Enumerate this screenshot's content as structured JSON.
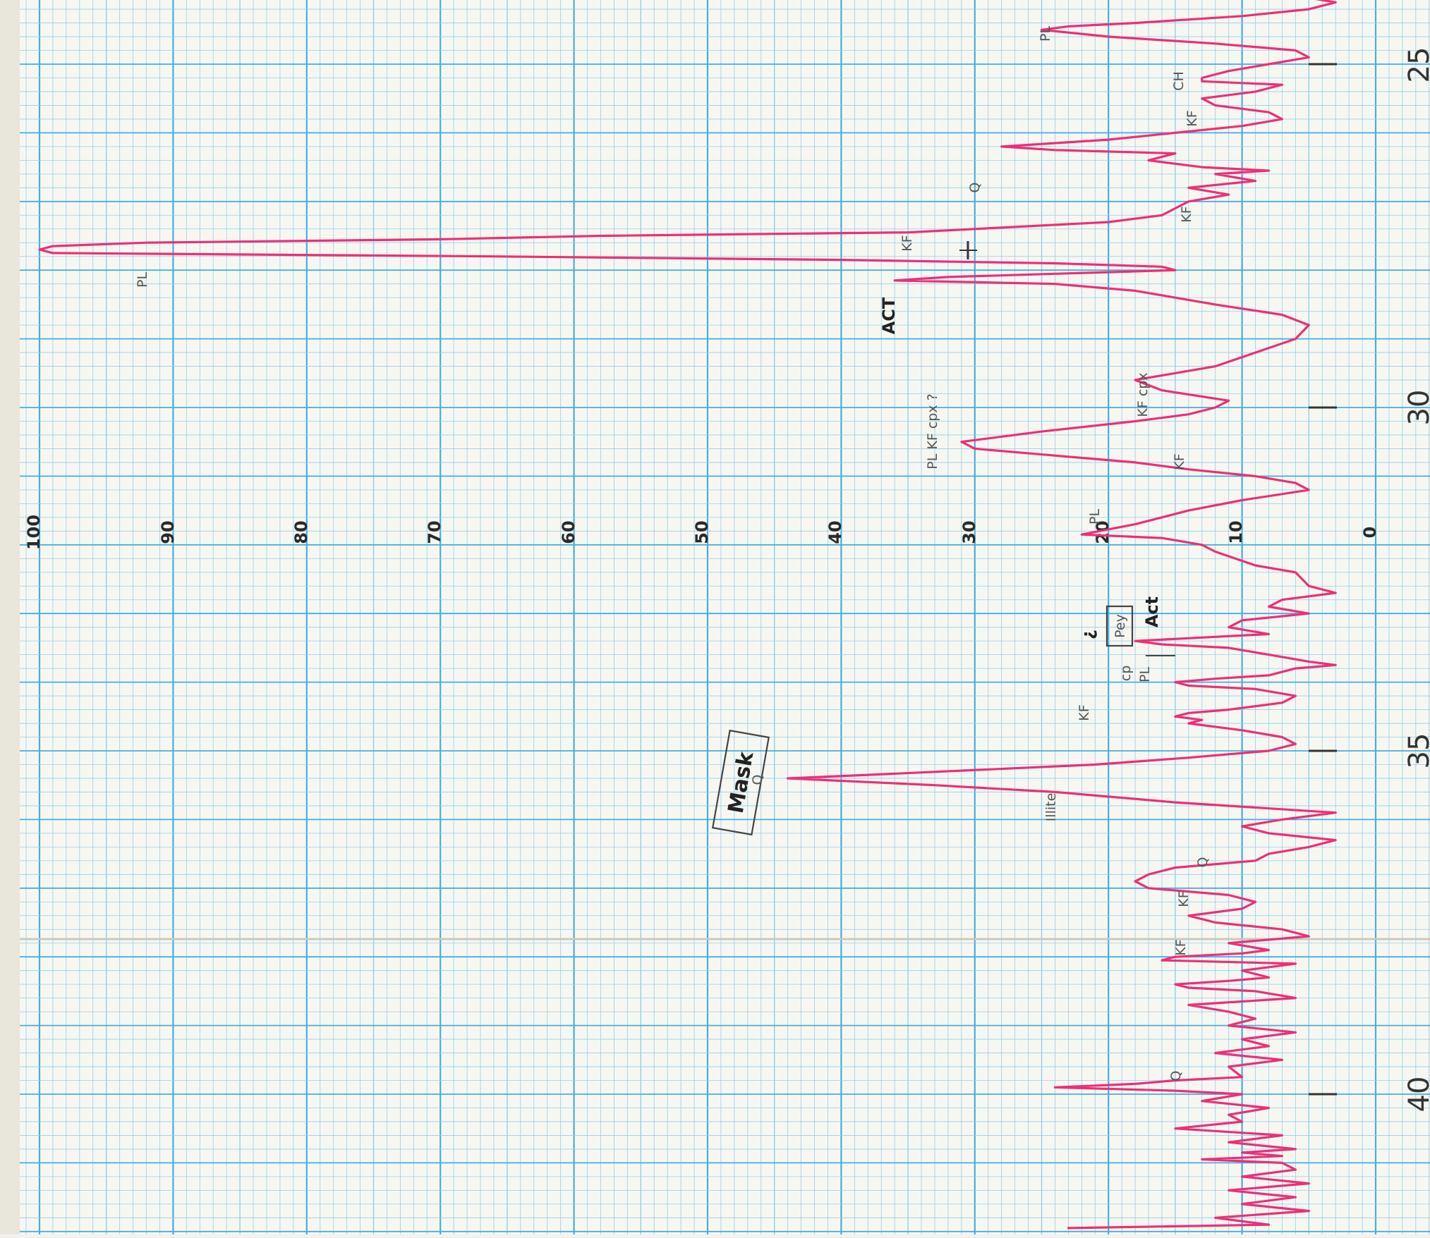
{
  "colors": {
    "paper": "#f4f2ea",
    "grid_minor": "#8fd0ee",
    "grid_major": "#45aee2",
    "trace": "#ee2e76",
    "pencil": "#555555"
  },
  "chart_data": {
    "type": "line",
    "orientation": "rotated-90",
    "title": "",
    "xlabel": "",
    "ylabel": "",
    "value_axis_ticks": [
      "100",
      "90",
      "80",
      "70",
      "60",
      "50",
      "40",
      "30",
      "20",
      "10",
      "0"
    ],
    "value_range": [
      0,
      100
    ],
    "position_axis_labels": [
      "40",
      "35",
      "30",
      "25"
    ],
    "position_axis_ticks": [
      40,
      35,
      30,
      25
    ],
    "grid": true,
    "series": [
      {
        "points": [
          [
            41.95,
            23
          ],
          [
            41.9,
            8
          ],
          [
            41.8,
            12
          ],
          [
            41.7,
            5
          ],
          [
            41.6,
            10
          ],
          [
            41.5,
            6
          ],
          [
            41.4,
            11
          ],
          [
            41.3,
            5
          ],
          [
            41.2,
            10
          ],
          [
            41.1,
            6
          ],
          [
            41.0,
            7
          ],
          [
            40.95,
            13
          ],
          [
            40.9,
            7
          ],
          [
            40.85,
            10
          ],
          [
            40.8,
            6
          ],
          [
            40.7,
            11
          ],
          [
            40.6,
            7
          ],
          [
            40.5,
            15
          ],
          [
            40.4,
            10
          ],
          [
            40.3,
            11
          ],
          [
            40.2,
            8
          ],
          [
            40.1,
            13
          ],
          [
            40.0,
            10
          ],
          [
            39.95,
            15
          ],
          [
            39.9,
            24
          ],
          [
            39.85,
            18
          ],
          [
            39.8,
            15
          ],
          [
            39.75,
            10
          ],
          [
            39.6,
            11
          ],
          [
            39.5,
            7
          ],
          [
            39.4,
            12
          ],
          [
            39.3,
            8
          ],
          [
            39.2,
            10
          ],
          [
            39.1,
            6
          ],
          [
            39.0,
            11
          ],
          [
            38.9,
            9
          ],
          [
            38.8,
            11
          ],
          [
            38.7,
            14
          ],
          [
            38.65,
            10
          ],
          [
            38.6,
            6
          ],
          [
            38.5,
            9
          ],
          [
            38.45,
            14
          ],
          [
            38.4,
            15
          ],
          [
            38.35,
            11
          ],
          [
            38.3,
            8
          ],
          [
            38.2,
            10
          ],
          [
            38.1,
            6
          ],
          [
            38.05,
            16
          ],
          [
            38.0,
            15
          ],
          [
            37.95,
            10
          ],
          [
            37.9,
            8
          ],
          [
            37.8,
            11
          ],
          [
            37.7,
            5
          ],
          [
            37.6,
            7
          ],
          [
            37.5,
            12
          ],
          [
            37.4,
            14
          ],
          [
            37.3,
            10
          ],
          [
            37.2,
            9
          ],
          [
            37.1,
            11
          ],
          [
            37.0,
            17
          ],
          [
            36.9,
            18
          ],
          [
            36.8,
            17
          ],
          [
            36.7,
            15
          ],
          [
            36.6,
            9
          ],
          [
            36.5,
            8
          ],
          [
            36.4,
            5
          ],
          [
            36.3,
            3
          ],
          [
            36.2,
            8
          ],
          [
            36.1,
            10
          ],
          [
            36.0,
            7
          ],
          [
            35.9,
            3
          ],
          [
            35.75,
            15
          ],
          [
            35.6,
            24
          ],
          [
            35.5,
            33
          ],
          [
            35.4,
            44
          ],
          [
            35.35,
            38
          ],
          [
            35.2,
            21
          ],
          [
            35.1,
            14
          ],
          [
            35.0,
            8
          ],
          [
            34.9,
            6
          ],
          [
            34.8,
            7
          ],
          [
            34.7,
            10
          ],
          [
            34.6,
            14
          ],
          [
            34.55,
            13
          ],
          [
            34.5,
            15
          ],
          [
            34.45,
            14
          ],
          [
            34.4,
            11
          ],
          [
            34.3,
            7
          ],
          [
            34.2,
            6
          ],
          [
            34.1,
            9
          ],
          [
            34.05,
            14
          ],
          [
            34.0,
            15
          ],
          [
            33.95,
            12
          ],
          [
            33.9,
            8
          ],
          [
            33.8,
            6
          ],
          [
            33.75,
            3
          ],
          [
            33.7,
            5
          ],
          [
            33.6,
            8
          ],
          [
            33.5,
            11
          ],
          [
            33.45,
            16
          ],
          [
            33.4,
            18
          ],
          [
            33.35,
            13
          ],
          [
            33.3,
            8
          ],
          [
            33.2,
            11
          ],
          [
            33.1,
            10
          ],
          [
            33.0,
            5
          ],
          [
            32.9,
            8
          ],
          [
            32.8,
            7
          ],
          [
            32.7,
            3
          ],
          [
            32.6,
            5
          ],
          [
            32.4,
            6
          ],
          [
            32.3,
            9
          ],
          [
            32.1,
            12
          ],
          [
            32.0,
            13
          ],
          [
            31.9,
            16
          ],
          [
            31.85,
            22
          ],
          [
            31.7,
            18
          ],
          [
            31.5,
            14
          ],
          [
            31.35,
            10
          ],
          [
            31.2,
            5
          ],
          [
            31.1,
            6
          ],
          [
            31.0,
            9
          ],
          [
            30.9,
            14
          ],
          [
            30.8,
            18
          ],
          [
            30.7,
            24
          ],
          [
            30.6,
            30
          ],
          [
            30.5,
            31
          ],
          [
            30.35,
            25
          ],
          [
            30.2,
            18
          ],
          [
            30.1,
            14
          ],
          [
            30.0,
            12
          ],
          [
            29.9,
            11
          ],
          [
            29.75,
            16
          ],
          [
            29.6,
            18
          ],
          [
            29.5,
            15
          ],
          [
            29.4,
            12
          ],
          [
            29.2,
            9
          ],
          [
            29.0,
            6
          ],
          [
            28.8,
            5
          ],
          [
            28.65,
            7
          ],
          [
            28.5,
            12
          ],
          [
            28.3,
            18
          ],
          [
            28.2,
            24
          ],
          [
            28.15,
            36
          ],
          [
            28.1,
            32
          ],
          [
            28.0,
            15
          ],
          [
            27.95,
            16
          ],
          [
            27.9,
            24
          ],
          [
            27.85,
            40
          ],
          [
            27.8,
            66
          ],
          [
            27.75,
            99
          ],
          [
            27.7,
            100
          ],
          [
            27.65,
            99
          ],
          [
            27.6,
            92
          ],
          [
            27.55,
            70
          ],
          [
            27.5,
            58
          ],
          [
            27.45,
            35
          ],
          [
            27.4,
            30
          ],
          [
            27.3,
            20
          ],
          [
            27.2,
            16
          ],
          [
            27.1,
            15
          ],
          [
            27.0,
            14
          ],
          [
            26.9,
            11
          ],
          [
            26.8,
            14
          ],
          [
            26.7,
            9
          ],
          [
            26.6,
            12
          ],
          [
            26.55,
            8
          ],
          [
            26.5,
            13
          ],
          [
            26.4,
            17
          ],
          [
            26.3,
            15
          ],
          [
            26.25,
            24
          ],
          [
            26.2,
            28
          ],
          [
            26.1,
            20
          ],
          [
            26.0,
            15
          ],
          [
            25.9,
            10
          ],
          [
            25.8,
            7
          ],
          [
            25.7,
            8
          ],
          [
            25.6,
            12
          ],
          [
            25.5,
            13
          ],
          [
            25.4,
            9
          ],
          [
            25.3,
            7
          ],
          [
            25.25,
            13
          ],
          [
            25.2,
            13
          ],
          [
            25.1,
            11
          ],
          [
            25.0,
            8
          ],
          [
            24.9,
            5
          ],
          [
            24.8,
            6
          ],
          [
            24.7,
            12
          ],
          [
            24.6,
            20
          ],
          [
            24.5,
            25
          ],
          [
            24.45,
            23
          ],
          [
            24.4,
            18
          ],
          [
            24.3,
            10
          ],
          [
            24.2,
            5
          ],
          [
            24.1,
            3
          ],
          [
            24.0,
            6
          ]
        ]
      }
    ]
  },
  "annotations": {
    "mask_box": "Mask",
    "small_box": "Pey",
    "act_label": "Act",
    "act_upper": "ACT",
    "question_mark": "?",
    "q": "Q",
    "pl": "PL",
    "kf": "KF",
    "ch": "CH",
    "kf_cpx": "KF cpx",
    "cp": "cp",
    "cpx_question": "PL KF cpx ?",
    "illite": "Illite"
  }
}
